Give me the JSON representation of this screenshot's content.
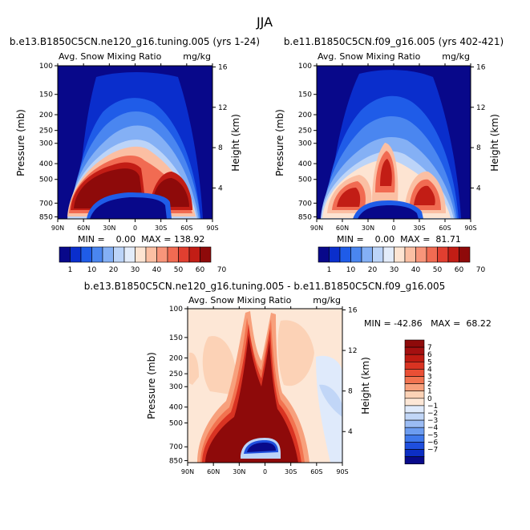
{
  "figure_title": "JJA",
  "panels": [
    {
      "title": "b.e13.B1850C5CN.ne120_g16.tuning.005 (yrs 1-24)",
      "subtitle_left": "Avg. Snow Mixing Ratio",
      "subtitle_right": "mg/kg",
      "ylabel": "Pressure (mb)",
      "ylabel_right": "Height (km)",
      "stats": "MIN =    0.00  MAX = 138.92"
    },
    {
      "title": "b.e11.B1850C5CN.f09_g16.005 (yrs 402-421)",
      "subtitle_left": "Avg. Snow Mixing Ratio",
      "subtitle_right": "mg/kg",
      "ylabel": "Pressure (mb)",
      "ylabel_right": "Height (km)",
      "stats": "MIN =    0.00  MAX =  81.71"
    },
    {
      "title": "b.e13.B1850C5CN.ne120_g16.tuning.005 - b.e11.B1850C5CN.f09_g16.005",
      "subtitle_left": "Avg. Snow Mixing Ratio",
      "subtitle_right": "mg/kg",
      "ylabel": "Pressure (mb)",
      "ylabel_right": "Height (km)",
      "stats": "MIN = -42.86   MAX =  68.22"
    }
  ],
  "chart_data": [
    {
      "type": "heatmap",
      "title": "b.e13.B1850C5CN.ne120_g16.tuning.005 (yrs 1-24)",
      "x_ticks": [
        "90N",
        "60N",
        "30N",
        "0",
        "30S",
        "60S",
        "90S"
      ],
      "x_values": [
        90,
        60,
        30,
        0,
        -30,
        -60,
        -90
      ],
      "y_ticks": [
        "100",
        "150",
        "200",
        "250",
        "300",
        "400",
        "500",
        "700",
        "850"
      ],
      "y_values": [
        100,
        150,
        200,
        250,
        300,
        400,
        500,
        700,
        850
      ],
      "y_scale": "log",
      "ylim": [
        875,
        100
      ],
      "y2_ticks": [
        "16",
        "12",
        "8",
        "4"
      ],
      "y2_values": [
        16,
        12,
        8,
        4
      ],
      "colorbar_levels": [
        1,
        10,
        20,
        30,
        40,
        50,
        60,
        70
      ],
      "colorbar_labels": [
        "1",
        "10",
        "20",
        "30",
        "40",
        "50",
        "60",
        "70"
      ],
      "min": 0.0,
      "max": 138.92
    },
    {
      "type": "heatmap",
      "title": "b.e11.B1850C5CN.f09_g16.005 (yrs 402-421)",
      "x_ticks": [
        "90N",
        "60N",
        "30N",
        "0",
        "30S",
        "60S",
        "90S"
      ],
      "x_values": [
        90,
        60,
        30,
        0,
        -30,
        -60,
        -90
      ],
      "y_ticks": [
        "100",
        "150",
        "200",
        "250",
        "300",
        "400",
        "500",
        "700",
        "850"
      ],
      "y_values": [
        100,
        150,
        200,
        250,
        300,
        400,
        500,
        700,
        850
      ],
      "y_scale": "log",
      "ylim": [
        875,
        100
      ],
      "y2_ticks": [
        "16",
        "12",
        "8",
        "4"
      ],
      "y2_values": [
        16,
        12,
        8,
        4
      ],
      "colorbar_levels": [
        1,
        10,
        20,
        30,
        40,
        50,
        60,
        70
      ],
      "colorbar_labels": [
        "1",
        "10",
        "20",
        "30",
        "40",
        "50",
        "60",
        "70"
      ],
      "min": 0.0,
      "max": 81.71
    },
    {
      "type": "heatmap",
      "title": "b.e13.B1850C5CN.ne120_g16.tuning.005 - b.e11.B1850C5CN.f09_g16.005",
      "x_ticks": [
        "90N",
        "60N",
        "30N",
        "0",
        "30S",
        "60S",
        "90S"
      ],
      "x_values": [
        90,
        60,
        30,
        0,
        -30,
        -60,
        -90
      ],
      "y_ticks": [
        "100",
        "150",
        "200",
        "250",
        "300",
        "400",
        "500",
        "700",
        "850"
      ],
      "y_values": [
        100,
        150,
        200,
        250,
        300,
        400,
        500,
        700,
        850
      ],
      "y_scale": "log",
      "ylim": [
        875,
        100
      ],
      "y2_ticks": [
        "16",
        "12",
        "8",
        "4"
      ],
      "y2_values": [
        16,
        12,
        8,
        4
      ],
      "colorbar_levels": [
        7,
        6,
        5,
        4,
        3,
        2,
        1,
        0,
        -1,
        -2,
        -3,
        -4,
        -5,
        -6,
        -7
      ],
      "colorbar_labels": [
        "7",
        "6",
        "5",
        "4",
        "3",
        "2",
        "1",
        "0",
        "−1",
        "−2",
        "−3",
        "−4",
        "−5",
        "−6",
        "−7"
      ],
      "min": -42.86,
      "max": 68.22
    }
  ],
  "colors": {
    "seq": [
      "#08088a",
      "#0a2ecc",
      "#1f5ce8",
      "#4a86f0",
      "#84b0f5",
      "#bcd4f8",
      "#e3ecfa",
      "#fde4d2",
      "#fbbfa3",
      "#f8957a",
      "#f16b52",
      "#e13f30",
      "#c21d15",
      "#8e0a0a"
    ],
    "diff": [
      "#8e0a0a",
      "#a41010",
      "#bf1b12",
      "#d93322",
      "#ea4f35",
      "#f27350",
      "#f7a07c",
      "#fcd2b6",
      "#fde7d6",
      "#dfeafb",
      "#c1d6f7",
      "#9bbcf4",
      "#6c9cf0",
      "#3f78eb",
      "#1f4fde",
      "#0c2ec4",
      "#080a8a"
    ]
  }
}
